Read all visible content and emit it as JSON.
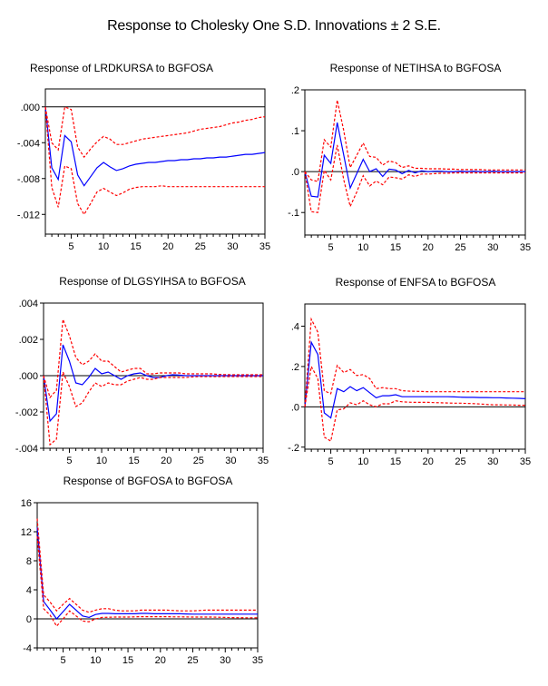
{
  "title": "Response to Cholesky One S.D. Innovations ± 2 S.E.",
  "colors": {
    "response": "#0000ff",
    "band": "#ff0000",
    "axis": "#000000"
  },
  "chart_data": [
    {
      "type": "line",
      "title": "Response of LRDKURSA to BGFOSA",
      "x": [
        1,
        2,
        3,
        4,
        5,
        6,
        7,
        8,
        9,
        10,
        11,
        12,
        13,
        14,
        15,
        16,
        17,
        18,
        19,
        20,
        21,
        22,
        23,
        24,
        25,
        26,
        27,
        28,
        29,
        30,
        31,
        32,
        33,
        34,
        35
      ],
      "xlim": [
        1,
        35
      ],
      "ylim": [
        -0.0142,
        0.002
      ],
      "xticks": [
        5,
        10,
        15,
        20,
        25,
        30,
        35
      ],
      "xtick_labels": [
        "5",
        "10",
        "15",
        "20",
        "25",
        "30",
        "35"
      ],
      "yticks": [
        0,
        -0.004,
        -0.008,
        -0.012
      ],
      "ytick_labels": [
        ".000",
        "-.004",
        "-.008",
        "-.012"
      ],
      "series": [
        {
          "name": "response",
          "values": [
            0,
            -0.0068,
            -0.0081,
            -0.0032,
            -0.0039,
            -0.0076,
            -0.0088,
            -0.0078,
            -0.0068,
            -0.0062,
            -0.0067,
            -0.0071,
            -0.0069,
            -0.0066,
            -0.0064,
            -0.0063,
            -0.0062,
            -0.0062,
            -0.0061,
            -0.006,
            -0.006,
            -0.0059,
            -0.0059,
            -0.0058,
            -0.0058,
            -0.0057,
            -0.0057,
            -0.0056,
            -0.0056,
            -0.0055,
            -0.0054,
            -0.0053,
            -0.0053,
            -0.0052,
            -0.0051
          ]
        },
        {
          "name": "upper",
          "values": [
            0,
            -0.004,
            -0.0048,
            0.0,
            -0.0003,
            -0.0045,
            -0.0056,
            -0.0047,
            -0.0039,
            -0.0033,
            -0.0036,
            -0.0042,
            -0.0042,
            -0.004,
            -0.0038,
            -0.0036,
            -0.0035,
            -0.0034,
            -0.0033,
            -0.0032,
            -0.0031,
            -0.003,
            -0.0029,
            -0.0027,
            -0.0025,
            -0.0024,
            -0.0023,
            -0.0022,
            -0.002,
            -0.0018,
            -0.0017,
            -0.0015,
            -0.0014,
            -0.0012,
            -0.0011
          ]
        },
        {
          "name": "lower",
          "values": [
            0,
            -0.009,
            -0.0112,
            -0.0066,
            -0.0069,
            -0.0108,
            -0.012,
            -0.0108,
            -0.0095,
            -0.0091,
            -0.0095,
            -0.0099,
            -0.0096,
            -0.0092,
            -0.009,
            -0.0089,
            -0.0089,
            -0.0089,
            -0.0088,
            -0.0089,
            -0.0089,
            -0.0089,
            -0.0089,
            -0.0089,
            -0.0089,
            -0.0089,
            -0.0089,
            -0.0089,
            -0.0089,
            -0.0089,
            -0.0089,
            -0.0089,
            -0.0089,
            -0.0089,
            -0.0089
          ]
        }
      ]
    },
    {
      "type": "line",
      "title": "Response of NETIHSA to BGFOSA",
      "x": [
        1,
        2,
        3,
        4,
        5,
        6,
        7,
        8,
        9,
        10,
        11,
        12,
        13,
        14,
        15,
        16,
        17,
        18,
        19,
        20,
        21,
        22,
        23,
        24,
        25,
        26,
        27,
        28,
        29,
        30,
        31,
        32,
        33,
        34,
        35
      ],
      "xlim": [
        1,
        35
      ],
      "ylim": [
        -0.155,
        0.2
      ],
      "xticks": [
        5,
        10,
        15,
        20,
        25,
        30,
        35
      ],
      "xtick_labels": [
        "5",
        "10",
        "15",
        "20",
        "25",
        "30",
        "35"
      ],
      "yticks": [
        0.2,
        0.1,
        0,
        -0.1
      ],
      "ytick_labels": [
        ".2",
        ".1",
        ".0",
        "-.1"
      ],
      "series": [
        {
          "name": "response",
          "values": [
            0,
            -0.06,
            -0.062,
            0.04,
            0.02,
            0.12,
            0.04,
            -0.04,
            -0.005,
            0.03,
            0.0,
            0.007,
            -0.012,
            0.006,
            0.004,
            -0.005,
            0.003,
            -0.003,
            0.002,
            0.0,
            0.001,
            0.001,
            0.0,
            0.0,
            0.001,
            0.0,
            0.001,
            0.0,
            0.0,
            0.001,
            0.0,
            0.0,
            0.0,
            0.0,
            0.0
          ]
        },
        {
          "name": "upper",
          "values": [
            0,
            -0.02,
            -0.024,
            0.078,
            0.06,
            0.175,
            0.1,
            0.01,
            0.04,
            0.07,
            0.037,
            0.035,
            0.016,
            0.026,
            0.022,
            0.01,
            0.014,
            0.008,
            0.008,
            0.007,
            0.007,
            0.007,
            0.006,
            0.006,
            0.005,
            0.005,
            0.005,
            0.005,
            0.004,
            0.004,
            0.004,
            0.004,
            0.004,
            0.004,
            0.004
          ]
        },
        {
          "name": "lower",
          "values": [
            0,
            -0.098,
            -0.1,
            0.003,
            -0.02,
            0.065,
            -0.02,
            -0.085,
            -0.05,
            -0.01,
            -0.035,
            -0.023,
            -0.032,
            -0.013,
            -0.015,
            -0.018,
            -0.008,
            -0.012,
            -0.006,
            -0.006,
            -0.005,
            -0.004,
            -0.004,
            -0.003,
            -0.003,
            -0.003,
            -0.003,
            -0.003,
            -0.003,
            -0.003,
            -0.003,
            -0.003,
            -0.003,
            -0.003,
            -0.003
          ]
        }
      ]
    },
    {
      "type": "line",
      "title": "Response of DLGSYIHSA to BGFOSA",
      "x": [
        1,
        2,
        3,
        4,
        5,
        6,
        7,
        8,
        9,
        10,
        11,
        12,
        13,
        14,
        15,
        16,
        17,
        18,
        19,
        20,
        21,
        22,
        23,
        24,
        25,
        26,
        27,
        28,
        29,
        30,
        31,
        32,
        33,
        34,
        35
      ],
      "xlim": [
        1,
        35
      ],
      "ylim": [
        -0.004,
        0.004
      ],
      "xticks": [
        5,
        10,
        15,
        20,
        25,
        30,
        35
      ],
      "xtick_labels": [
        "5",
        "10",
        "15",
        "20",
        "25",
        "30",
        "35"
      ],
      "yticks": [
        0.004,
        0.002,
        0,
        -0.002,
        -0.004
      ],
      "ytick_labels": [
        ".004",
        ".002",
        ".000",
        "-.002",
        "-.004"
      ],
      "series": [
        {
          "name": "response",
          "values": [
            0,
            -0.0025,
            -0.0021,
            0.0017,
            0.0008,
            -0.0004,
            -0.0005,
            -0.0001,
            0.0004,
            0.0001,
            0.0002,
            0.0,
            -0.0002,
            0.0,
            0.0001,
            0.00015,
            0.0,
            -0.0001,
            -0.0001,
            0.0,
            5e-05,
            3e-05,
            0.0,
            0.0,
            0.0,
            0.0,
            0.0,
            0.0,
            0.0,
            0.0,
            0.0,
            0.0,
            0.0,
            0.0,
            0.0
          ]
        },
        {
          "name": "upper",
          "values": [
            0,
            -0.0012,
            -0.0008,
            0.0031,
            0.0022,
            0.001,
            0.0006,
            0.0008,
            0.0012,
            0.0008,
            0.0008,
            0.0005,
            0.0002,
            0.0003,
            0.0004,
            0.0004,
            0.0001,
            0.0001,
            0.00015,
            0.00015,
            0.00015,
            0.00015,
            0.0001,
            0.0001,
            0.0001,
            0.0001,
            0.0001,
            7e-05,
            6e-05,
            5e-05,
            5e-05,
            5e-05,
            5e-05,
            5e-05,
            5e-05
          ]
        },
        {
          "name": "lower",
          "values": [
            0,
            -0.0038,
            -0.0035,
            0.0002,
            -0.0006,
            -0.0017,
            -0.0015,
            -0.0009,
            -0.0004,
            -0.0006,
            -0.0004,
            -0.0005,
            -0.0005,
            -0.0003,
            -0.0002,
            -0.0001,
            -0.0002,
            -0.0002,
            -0.0001,
            -0.0001,
            -0.0001,
            -0.0001,
            -0.0001,
            -7e-05,
            -5e-05,
            -5e-05,
            -5e-05,
            -5e-05,
            -5e-05,
            -5e-05,
            -5e-05,
            -5e-05,
            -5e-05,
            -5e-05,
            -5e-05
          ]
        }
      ]
    },
    {
      "type": "line",
      "title": "Response of ENFSA to BGFOSA",
      "x": [
        1,
        2,
        3,
        4,
        5,
        6,
        7,
        8,
        9,
        10,
        11,
        12,
        13,
        14,
        15,
        16,
        17,
        18,
        19,
        20,
        21,
        22,
        23,
        24,
        25,
        26,
        27,
        28,
        29,
        30,
        31,
        32,
        33,
        34,
        35
      ],
      "xlim": [
        1,
        35
      ],
      "ylim": [
        -0.21,
        0.51
      ],
      "xticks": [
        5,
        10,
        15,
        20,
        25,
        30,
        35
      ],
      "xtick_labels": [
        "5",
        "10",
        "15",
        "20",
        "25",
        "30",
        "35"
      ],
      "yticks": [
        0.4,
        0.2,
        0,
        -0.2
      ],
      "ytick_labels": [
        ".4",
        ".2",
        ".0",
        "-.2"
      ],
      "series": [
        {
          "name": "response",
          "values": [
            0,
            0.32,
            0.26,
            -0.03,
            -0.055,
            0.09,
            0.075,
            0.1,
            0.08,
            0.095,
            0.07,
            0.045,
            0.055,
            0.055,
            0.06,
            0.05,
            0.05,
            0.05,
            0.05,
            0.05,
            0.05,
            0.05,
            0.05,
            0.049,
            0.048,
            0.047,
            0.047,
            0.046,
            0.046,
            0.045,
            0.045,
            0.044,
            0.043,
            0.042,
            0.04
          ]
        },
        {
          "name": "upper",
          "values": [
            0,
            0.435,
            0.37,
            0.08,
            0.065,
            0.205,
            0.17,
            0.185,
            0.155,
            0.16,
            0.14,
            0.09,
            0.095,
            0.09,
            0.09,
            0.08,
            0.078,
            0.077,
            0.076,
            0.075,
            0.075,
            0.075,
            0.075,
            0.075,
            0.075,
            0.075,
            0.075,
            0.075,
            0.075,
            0.075,
            0.075,
            0.075,
            0.075,
            0.075,
            0.075
          ]
        },
        {
          "name": "lower",
          "values": [
            0,
            0.2,
            0.14,
            -0.15,
            -0.17,
            -0.015,
            -0.01,
            0.02,
            0.01,
            0.03,
            0.01,
            0.0,
            0.015,
            0.015,
            0.03,
            0.025,
            0.023,
            0.022,
            0.022,
            0.022,
            0.021,
            0.02,
            0.019,
            0.018,
            0.018,
            0.017,
            0.016,
            0.014,
            0.012,
            0.01,
            0.01,
            0.009,
            0.009,
            0.008,
            0.008
          ]
        }
      ]
    },
    {
      "type": "line",
      "title": "Response of BGFOSA to BGFOSA",
      "x": [
        1,
        2,
        3,
        4,
        5,
        6,
        7,
        8,
        9,
        10,
        11,
        12,
        13,
        14,
        15,
        16,
        17,
        18,
        19,
        20,
        21,
        22,
        23,
        24,
        25,
        26,
        27,
        28,
        29,
        30,
        31,
        32,
        33,
        34,
        35
      ],
      "xlim": [
        1,
        35
      ],
      "ylim": [
        -4,
        16
      ],
      "xticks": [
        5,
        10,
        15,
        20,
        25,
        30,
        35
      ],
      "xtick_labels": [
        "5",
        "10",
        "15",
        "20",
        "25",
        "30",
        "35"
      ],
      "yticks": [
        16,
        12,
        8,
        4,
        0,
        -4
      ],
      "ytick_labels": [
        "16",
        "12",
        "8",
        "4",
        "0",
        "-4"
      ],
      "series": [
        {
          "name": "response",
          "values": [
            12.6,
            2.4,
            1.2,
            0.0,
            1.0,
            2.0,
            1.2,
            0.4,
            0.2,
            0.6,
            0.75,
            0.75,
            0.7,
            0.7,
            0.7,
            0.7,
            0.75,
            0.75,
            0.7,
            0.7,
            0.7,
            0.7,
            0.7,
            0.68,
            0.65,
            0.65,
            0.65,
            0.65,
            0.65,
            0.65,
            0.65,
            0.65,
            0.65,
            0.65,
            0.65
          ]
        },
        {
          "name": "upper",
          "values": [
            13.8,
            3.3,
            2.3,
            1.1,
            2.0,
            2.8,
            2.0,
            1.2,
            0.9,
            1.2,
            1.4,
            1.4,
            1.2,
            1.1,
            1.1,
            1.1,
            1.2,
            1.2,
            1.2,
            1.2,
            1.2,
            1.15,
            1.1,
            1.1,
            1.1,
            1.15,
            1.2,
            1.2,
            1.2,
            1.2,
            1.2,
            1.2,
            1.2,
            1.2,
            1.2
          ]
        },
        {
          "name": "lower",
          "values": [
            11.4,
            1.4,
            0.5,
            -1.0,
            0.0,
            1.1,
            0.4,
            -0.3,
            -0.4,
            0.0,
            0.2,
            0.22,
            0.25,
            0.25,
            0.25,
            0.28,
            0.3,
            0.3,
            0.3,
            0.3,
            0.3,
            0.28,
            0.27,
            0.26,
            0.25,
            0.25,
            0.25,
            0.25,
            0.22,
            0.2,
            0.18,
            0.16,
            0.15,
            0.15,
            0.15
          ]
        }
      ]
    }
  ]
}
